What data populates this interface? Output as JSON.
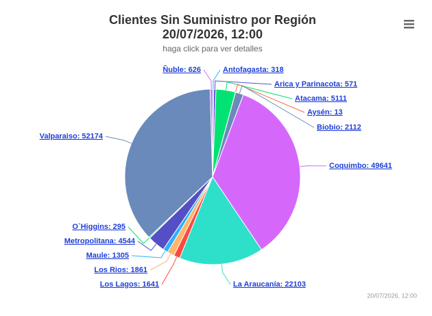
{
  "chart_data": {
    "type": "pie",
    "title": "Clientes Sin Suministro por Región",
    "title_line2": "20/07/2026, 12:00",
    "subtitle": "haga click para ver detalles",
    "credits": "20/07/2026, 12:00",
    "values": [
      318,
      571,
      5111,
      13,
      2112,
      49641,
      22103,
      1641,
      1861,
      1305,
      4544,
      295,
      52174,
      626
    ],
    "value_labels": [
      "Antofagasta: 318",
      "Arica y Parinacota: 571",
      "Atacama: 5111",
      "Aysén: 13",
      "Biobio: 2112",
      "Coquimbo: 49641",
      "La Araucanía: 22103",
      "Los Lagos: 1641",
      "Los Rios: 1861",
      "Maule: 1305",
      "Metropolitana: 4544",
      "O`Higgins: 295",
      "Valparaiso: 52174",
      "Ñuble: 626"
    ],
    "colors": [
      "#2caffe",
      "#544fc5",
      "#00e272",
      "#fe6a35",
      "#6b8abc",
      "#d568fb",
      "#2ee0ca",
      "#fa4b42",
      "#feb56a",
      "#2caffe",
      "#544fc5",
      "#00e272",
      "#6b8abc",
      "#d568fb"
    ]
  }
}
